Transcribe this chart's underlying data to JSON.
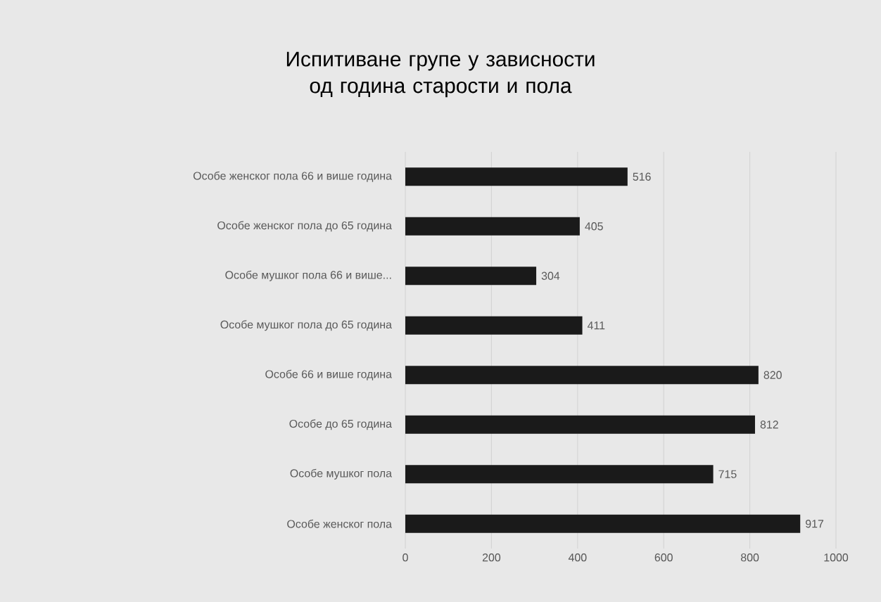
{
  "chart_data": {
    "type": "bar",
    "orientation": "horizontal",
    "title": "Испитиване групе у зависности од година старости и пола",
    "categories": [
      "Особе женског пола 66 и више година",
      "Особе женског пола до 65 година",
      "Особе мушког пола 66 и више...",
      "Особе мушког пола до 65 година",
      "Особе 66 и више година",
      "Особе до 65 година",
      "Особе мушког пола",
      "Особе женског пола"
    ],
    "values": [
      516,
      405,
      304,
      411,
      820,
      812,
      715,
      917
    ],
    "color": "#1a1a1a",
    "xlim": [
      0,
      1000
    ],
    "xticks": [
      0,
      200,
      400,
      600,
      800,
      1000
    ],
    "grid": "x",
    "data_labels": true
  }
}
